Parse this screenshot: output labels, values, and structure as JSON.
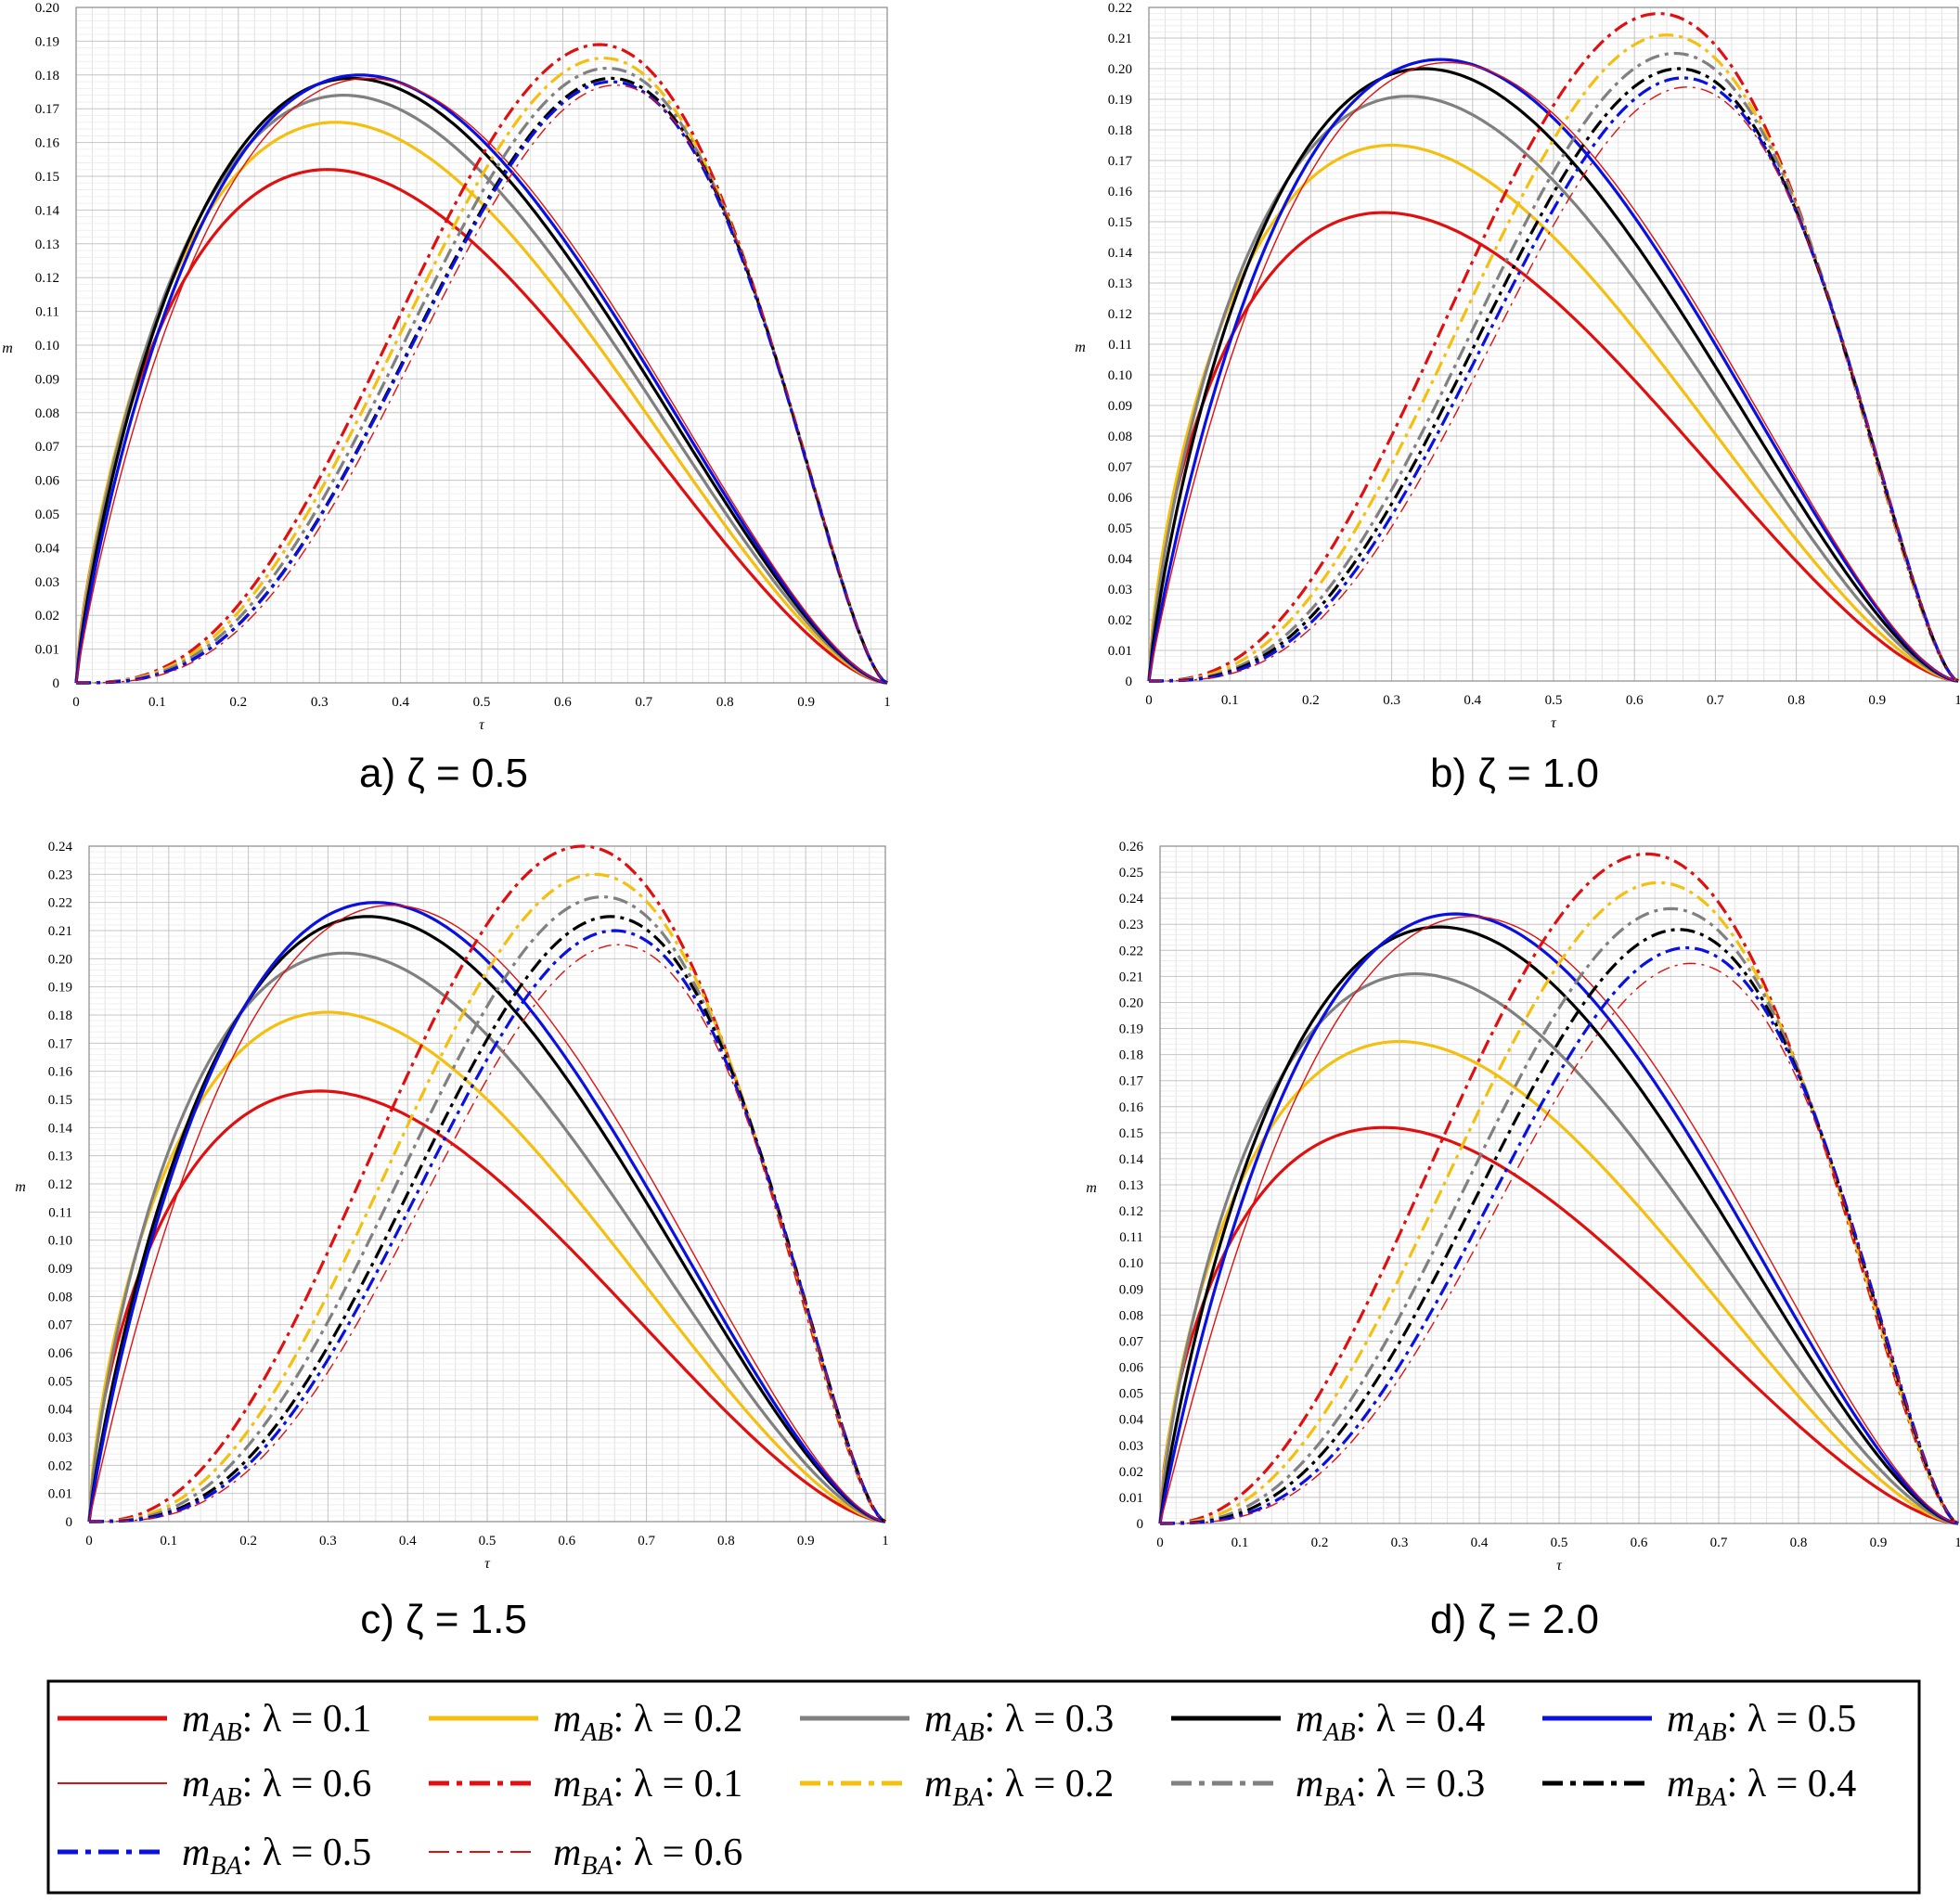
{
  "chart_data": [
    {
      "type": "line",
      "panel": "a",
      "caption": "a) ζ = 0.5",
      "xlabel": "τ",
      "ylabel": "m",
      "xlim": [
        0,
        1
      ],
      "ylim": [
        0,
        0.2
      ],
      "xticks": [
        "0",
        "0.1",
        "0.2",
        "0.3",
        "0.4",
        "0.5",
        "0.6",
        "0.7",
        "0.8",
        "0.9",
        "1"
      ],
      "yticks": [
        "0",
        "0.01",
        "0.02",
        "0.03",
        "0.04",
        "0.05",
        "0.06",
        "0.07",
        "0.08",
        "0.09",
        "0.10",
        "0.11",
        "0.12",
        "0.13",
        "0.14",
        "0.15",
        "0.16",
        "0.17",
        "0.18",
        "0.19",
        "0.20"
      ],
      "series": [
        {
          "name": "m_AB; λ = 0.1",
          "peak": 0.152,
          "peak_x": 0.31
        },
        {
          "name": "m_AB; λ = 0.2",
          "peak": 0.166,
          "peak_x": 0.32
        },
        {
          "name": "m_AB; λ = 0.3",
          "peak": 0.174,
          "peak_x": 0.33
        },
        {
          "name": "m_AB; λ = 0.4",
          "peak": 0.179,
          "peak_x": 0.34
        },
        {
          "name": "m_AB; λ = 0.5",
          "peak": 0.18,
          "peak_x": 0.35
        },
        {
          "name": "m_AB; λ = 0.6",
          "peak": 0.179,
          "peak_x": 0.36
        },
        {
          "name": "m_BA; λ = 0.1",
          "peak": 0.189,
          "peak_x": 0.645
        },
        {
          "name": "m_BA; λ = 0.2",
          "peak": 0.185,
          "peak_x": 0.65
        },
        {
          "name": "m_BA; λ = 0.3",
          "peak": 0.182,
          "peak_x": 0.655
        },
        {
          "name": "m_BA; λ = 0.4",
          "peak": 0.179,
          "peak_x": 0.66
        },
        {
          "name": "m_BA; λ = 0.5",
          "peak": 0.178,
          "peak_x": 0.66
        },
        {
          "name": "m_BA; λ = 0.6",
          "peak": 0.177,
          "peak_x": 0.665
        }
      ]
    },
    {
      "type": "line",
      "panel": "b",
      "caption": "b) ζ = 1.0",
      "xlabel": "τ",
      "ylabel": "m",
      "xlim": [
        0,
        1
      ],
      "ylim": [
        0,
        0.22
      ],
      "xticks": [
        "0",
        "0.1",
        "0.2",
        "0.3",
        "0.4",
        "0.5",
        "0.6",
        "0.7",
        "0.8",
        "0.9",
        "1"
      ],
      "yticks": [
        "0",
        "0.01",
        "0.02",
        "0.03",
        "0.04",
        "0.05",
        "0.06",
        "0.07",
        "0.08",
        "0.09",
        "0.10",
        "0.11",
        "0.12",
        "0.13",
        "0.14",
        "0.15",
        "0.16",
        "0.17",
        "0.18",
        "0.19",
        "0.20",
        "0.21",
        "0.22"
      ],
      "series": [
        {
          "name": "m_AB; λ = 0.1",
          "peak": 0.153,
          "peak_x": 0.29
        },
        {
          "name": "m_AB; λ = 0.2",
          "peak": 0.175,
          "peak_x": 0.3
        },
        {
          "name": "m_AB; λ = 0.3",
          "peak": 0.191,
          "peak_x": 0.32
        },
        {
          "name": "m_AB; λ = 0.4",
          "peak": 0.2,
          "peak_x": 0.34
        },
        {
          "name": "m_AB; λ = 0.5",
          "peak": 0.203,
          "peak_x": 0.36
        },
        {
          "name": "m_AB; λ = 0.6",
          "peak": 0.202,
          "peak_x": 0.37
        },
        {
          "name": "m_BA; λ = 0.1",
          "peak": 0.218,
          "peak_x": 0.63
        },
        {
          "name": "m_BA; λ = 0.2",
          "peak": 0.211,
          "peak_x": 0.64
        },
        {
          "name": "m_BA; λ = 0.3",
          "peak": 0.205,
          "peak_x": 0.65
        },
        {
          "name": "m_BA; λ = 0.4",
          "peak": 0.2,
          "peak_x": 0.655
        },
        {
          "name": "m_BA; λ = 0.5",
          "peak": 0.197,
          "peak_x": 0.66
        },
        {
          "name": "m_BA; λ = 0.6",
          "peak": 0.194,
          "peak_x": 0.665
        }
      ]
    },
    {
      "type": "line",
      "panel": "c",
      "caption": "c) ζ = 1.5",
      "xlabel": "τ",
      "ylabel": "m",
      "xlim": [
        0,
        1
      ],
      "ylim": [
        0,
        0.24
      ],
      "xticks": [
        "0",
        "0.1",
        "0.2",
        "0.3",
        "0.4",
        "0.5",
        "0.6",
        "0.7",
        "0.8",
        "0.9",
        "1"
      ],
      "yticks": [
        "0",
        "0.01",
        "0.02",
        "0.03",
        "0.04",
        "0.05",
        "0.06",
        "0.07",
        "0.08",
        "0.09",
        "0.10",
        "0.11",
        "0.12",
        "0.13",
        "0.14",
        "0.15",
        "0.16",
        "0.17",
        "0.18",
        "0.19",
        "0.20",
        "0.21",
        "0.22",
        "0.23",
        "0.24"
      ],
      "series": [
        {
          "name": "m_AB; λ = 0.1",
          "peak": 0.153,
          "peak_x": 0.29
        },
        {
          "name": "m_AB; λ = 0.2",
          "peak": 0.181,
          "peak_x": 0.3
        },
        {
          "name": "m_AB; λ = 0.3",
          "peak": 0.202,
          "peak_x": 0.32
        },
        {
          "name": "m_AB; λ = 0.4",
          "peak": 0.215,
          "peak_x": 0.35
        },
        {
          "name": "m_AB; λ = 0.5",
          "peak": 0.22,
          "peak_x": 0.36
        },
        {
          "name": "m_AB; λ = 0.6",
          "peak": 0.219,
          "peak_x": 0.38
        },
        {
          "name": "m_BA; λ = 0.1",
          "peak": 0.24,
          "peak_x": 0.62
        },
        {
          "name": "m_BA; λ = 0.2",
          "peak": 0.23,
          "peak_x": 0.635
        },
        {
          "name": "m_BA; λ = 0.3",
          "peak": 0.222,
          "peak_x": 0.645
        },
        {
          "name": "m_BA; λ = 0.4",
          "peak": 0.215,
          "peak_x": 0.655
        },
        {
          "name": "m_BA; λ = 0.5",
          "peak": 0.21,
          "peak_x": 0.66
        },
        {
          "name": "m_BA; λ = 0.6",
          "peak": 0.205,
          "peak_x": 0.665
        }
      ]
    },
    {
      "type": "line",
      "panel": "d",
      "caption": "d) ζ = 2.0",
      "xlabel": "τ",
      "ylabel": "m",
      "xlim": [
        0,
        1
      ],
      "ylim": [
        0,
        0.26
      ],
      "xticks": [
        "0",
        "0.1",
        "0.2",
        "0.3",
        "0.4",
        "0.5",
        "0.6",
        "0.7",
        "0.8",
        "0.9",
        "1"
      ],
      "yticks": [
        "0",
        "0.01",
        "0.02",
        "0.03",
        "0.04",
        "0.05",
        "0.06",
        "0.07",
        "0.08",
        "0.09",
        "0.10",
        "0.11",
        "0.12",
        "0.13",
        "0.14",
        "0.15",
        "0.16",
        "0.17",
        "0.18",
        "0.19",
        "0.20",
        "0.21",
        "0.22",
        "0.23",
        "0.24",
        "0.25",
        "0.26"
      ],
      "series": [
        {
          "name": "m_AB; λ = 0.1",
          "peak": 0.152,
          "peak_x": 0.28
        },
        {
          "name": "m_AB; λ = 0.2",
          "peak": 0.185,
          "peak_x": 0.3
        },
        {
          "name": "m_AB; λ = 0.3",
          "peak": 0.211,
          "peak_x": 0.32
        },
        {
          "name": "m_AB; λ = 0.4",
          "peak": 0.229,
          "peak_x": 0.35
        },
        {
          "name": "m_AB; λ = 0.5",
          "peak": 0.234,
          "peak_x": 0.37
        },
        {
          "name": "m_AB; λ = 0.6",
          "peak": 0.233,
          "peak_x": 0.39
        },
        {
          "name": "m_BA; λ = 0.1",
          "peak": 0.257,
          "peak_x": 0.61
        },
        {
          "name": "m_BA; λ = 0.2",
          "peak": 0.246,
          "peak_x": 0.625
        },
        {
          "name": "m_BA; λ = 0.3",
          "peak": 0.236,
          "peak_x": 0.64
        },
        {
          "name": "m_BA; λ = 0.4",
          "peak": 0.228,
          "peak_x": 0.65
        },
        {
          "name": "m_BA; λ = 0.5",
          "peak": 0.221,
          "peak_x": 0.66
        },
        {
          "name": "m_BA; λ = 0.6",
          "peak": 0.215,
          "peak_x": 0.665
        }
      ]
    }
  ],
  "legend": {
    "placement": "bottom",
    "items": [
      {
        "m": "m",
        "sub": "AB",
        "suffix": ": λ = 0.1",
        "color": "#e01010",
        "style": "solid",
        "weight": "thick"
      },
      {
        "m": "m",
        "sub": "AB",
        "suffix": ": λ = 0.2",
        "color": "#f5bf10",
        "style": "solid",
        "weight": "thick"
      },
      {
        "m": "m",
        "sub": "AB",
        "suffix": ": λ = 0.3",
        "color": "#808080",
        "style": "solid",
        "weight": "thick"
      },
      {
        "m": "m",
        "sub": "AB",
        "suffix": ": λ = 0.4",
        "color": "#000000",
        "style": "solid",
        "weight": "thick"
      },
      {
        "m": "m",
        "sub": "AB",
        "suffix": ": λ = 0.5",
        "color": "#0a10e0",
        "style": "solid",
        "weight": "thick"
      },
      {
        "m": "m",
        "sub": "AB",
        "suffix": ": λ = 0.6",
        "color": "#e01010",
        "style": "solid",
        "weight": "thin"
      },
      {
        "m": "m",
        "sub": "BA",
        "suffix": ": λ = 0.1",
        "color": "#e01010",
        "style": "dashdot",
        "weight": "thick"
      },
      {
        "m": "m",
        "sub": "BA",
        "suffix": ": λ = 0.2",
        "color": "#f5bf10",
        "style": "dashdot",
        "weight": "thick"
      },
      {
        "m": "m",
        "sub": "BA",
        "suffix": ": λ = 0.3",
        "color": "#808080",
        "style": "dashdot",
        "weight": "thick"
      },
      {
        "m": "m",
        "sub": "BA",
        "suffix": ": λ = 0.4",
        "color": "#000000",
        "style": "dashdot",
        "weight": "thick"
      },
      {
        "m": "m",
        "sub": "BA",
        "suffix": ": λ = 0.5",
        "color": "#0a10e0",
        "style": "dashdot",
        "weight": "thick"
      },
      {
        "m": "m",
        "sub": "BA",
        "suffix": ": λ = 0.6",
        "color": "#e01010",
        "style": "dashdot",
        "weight": "thin"
      }
    ]
  }
}
